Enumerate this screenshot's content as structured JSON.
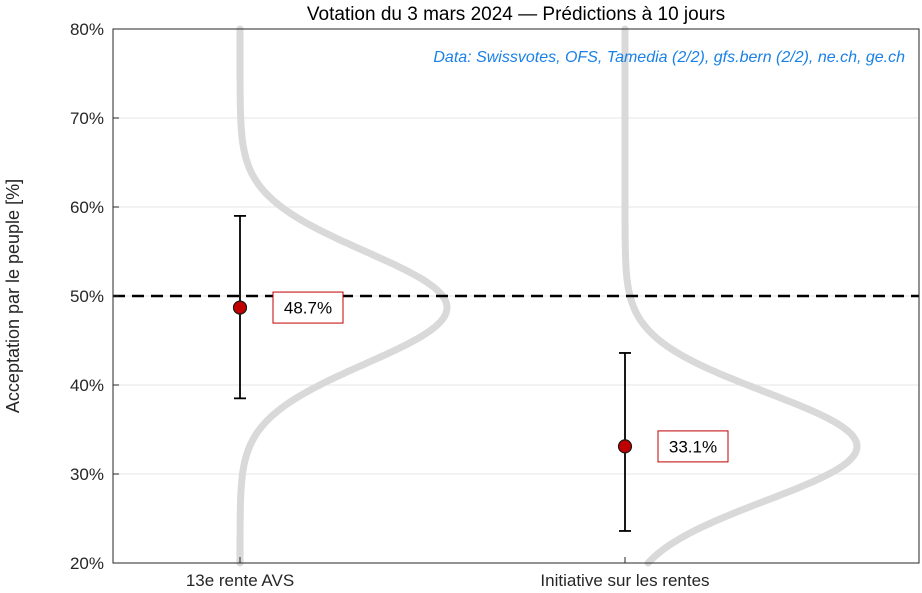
{
  "chart_data": {
    "type": "scatter",
    "title": "Votation du 3 mars 2024  —  Prédictions à 10 jours",
    "source": "Data: Swissvotes, OFS, Tamedia (2/2), gfs.bern (2/2), ne.ch, ge.ch",
    "ylabel": "Acceptation par le peuple [%]",
    "ylim": [
      20,
      80
    ],
    "yticks": [
      20,
      30,
      40,
      50,
      60,
      70,
      80
    ],
    "ytick_labels": [
      "20%",
      "30%",
      "40%",
      "50%",
      "60%",
      "70%",
      "80%"
    ],
    "grid": true,
    "reference_line": 50,
    "categories": [
      "13e rente AVS",
      "Initiative sur les rentes"
    ],
    "predictions": [
      {
        "name": "13e rente AVS",
        "value": 48.7,
        "lower": 38.5,
        "upper": 59.0,
        "label": "48.7%",
        "sd": 6.3
      },
      {
        "name": "Initiative sur les rentes",
        "value": 33.1,
        "lower": 23.6,
        "upper": 43.6,
        "label": "33.1%",
        "sd": 6.1
      }
    ]
  },
  "colors": {
    "marker": "#c00000",
    "label_border": "#c00000",
    "density": "#d9d9d9",
    "source_text": "#1a80e6",
    "grid": "#e6e6e6",
    "axis": "#262626",
    "reference": "#000000"
  }
}
